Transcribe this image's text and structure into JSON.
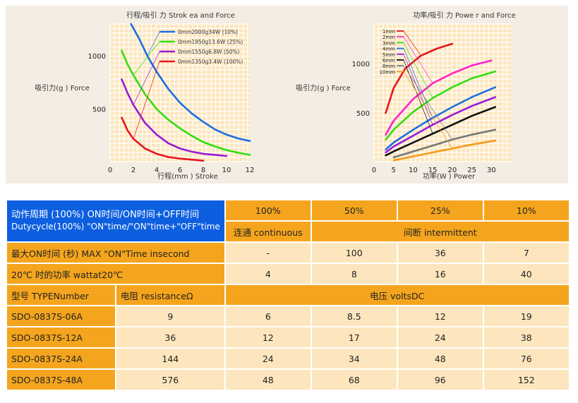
{
  "chart_data": [
    {
      "type": "line",
      "title": "行程/吸引 力 Strok ea and Force",
      "xlabel": "行程(mm ) Stroke",
      "ylabel": "吸引力(g ) Force",
      "xticks": [
        "0",
        "2",
        "4",
        "6",
        "8",
        "10",
        "12"
      ],
      "yticks": [
        "500",
        "1000"
      ],
      "xlim": [
        0,
        12
      ],
      "ylim": [
        0,
        1300
      ],
      "grid": true,
      "legend_position": "top-right",
      "series": [
        {
          "name": "0mm2000g34W (10%)",
          "color": "#1a6fe0",
          "x": [
            1.8,
            2.5,
            3.2,
            4,
            5,
            6,
            7,
            8,
            9,
            10,
            11,
            12
          ],
          "y": [
            1300,
            1160,
            1000,
            850,
            690,
            560,
            460,
            380,
            310,
            260,
            225,
            200
          ]
        },
        {
          "name": "0mm1950g13.6W (25%)",
          "color": "#33dd11",
          "x": [
            1,
            1.5,
            2,
            3,
            4,
            5,
            6,
            7,
            8,
            9,
            10,
            11,
            12
          ],
          "y": [
            1050,
            920,
            820,
            640,
            500,
            400,
            320,
            250,
            190,
            150,
            115,
            90,
            70
          ]
        },
        {
          "name": "0mm1550g6.8W (50%)",
          "color": "#9a1ad8",
          "x": [
            1,
            1.5,
            2,
            3,
            4,
            5,
            6,
            7,
            8,
            9,
            10
          ],
          "y": [
            780,
            650,
            540,
            370,
            260,
            180,
            130,
            100,
            80,
            70,
            60
          ]
        },
        {
          "name": "0mm1350g3.4W (100%)",
          "color": "#e8141e",
          "x": [
            1,
            1.5,
            2,
            3,
            4,
            5,
            6,
            7,
            8
          ],
          "y": [
            420,
            300,
            220,
            130,
            80,
            50,
            35,
            25,
            15
          ]
        }
      ]
    },
    {
      "type": "line",
      "title": "功率/吸引 力 Powe r and Force",
      "xlabel": "功率(W ) Power",
      "ylabel": "吸引力(g ) Force",
      "xticks": [
        "0",
        "5",
        "10",
        "15",
        "20",
        "25",
        "30"
      ],
      "yticks": [
        "500",
        "1000"
      ],
      "xlim": [
        0,
        35
      ],
      "ylim": [
        0,
        1400
      ],
      "grid": true,
      "legend_position": "top-left",
      "series": [
        {
          "name": "1mm",
          "color": "#e8141e",
          "x": [
            3,
            5,
            8,
            12,
            16,
            20
          ],
          "y": [
            500,
            750,
            950,
            1080,
            1150,
            1200
          ]
        },
        {
          "name": "2mm",
          "color": "#ff22cc",
          "x": [
            3,
            5,
            10,
            15,
            20,
            25,
            30
          ],
          "y": [
            280,
            420,
            640,
            800,
            900,
            980,
            1030
          ]
        },
        {
          "name": "3mm",
          "color": "#33dd11",
          "x": [
            3,
            5,
            10,
            15,
            20,
            25,
            31
          ],
          "y": [
            230,
            330,
            510,
            650,
            760,
            850,
            920
          ]
        },
        {
          "name": "4mm",
          "color": "#1a6fe0",
          "x": [
            3,
            5,
            10,
            15,
            20,
            25,
            31
          ],
          "y": [
            130,
            200,
            330,
            450,
            560,
            660,
            760
          ]
        },
        {
          "name": "5mm",
          "color": "#9a1ad8",
          "x": [
            3,
            5,
            10,
            15,
            20,
            25,
            31
          ],
          "y": [
            100,
            160,
            270,
            380,
            480,
            570,
            660
          ]
        },
        {
          "name": "6mm",
          "color": "#111111",
          "x": [
            3,
            5,
            10,
            15,
            20,
            25,
            31
          ],
          "y": [
            70,
            110,
            200,
            290,
            380,
            470,
            560
          ]
        },
        {
          "name": "8mm",
          "color": "#777777",
          "x": [
            5,
            10,
            15,
            20,
            25,
            31
          ],
          "y": [
            50,
            110,
            170,
            230,
            280,
            330
          ]
        },
        {
          "name": "10mm",
          "color": "#f59a1a",
          "x": [
            5,
            10,
            15,
            20,
            25,
            31
          ],
          "y": [
            20,
            60,
            100,
            140,
            180,
            220
          ]
        }
      ]
    }
  ],
  "table": {
    "header": {
      "line1": "动作周期 (100%) ON时间/ON时间+OFF时间",
      "line2": "Dutycycle(100%) \"ON\"time/\"ON\"time+\"OFF\"time",
      "duty": [
        "100%",
        "50%",
        "25%",
        "10%"
      ],
      "continuous": "连通 continuous",
      "intermittent": "间断 intermittent"
    },
    "max_on": {
      "label": "最大ON时间 (秒) MAX \"ON\"Time insecond",
      "values": [
        "-",
        "100",
        "36",
        "7"
      ]
    },
    "power": {
      "label": "20℃ 时的功率 wattat20℃",
      "values": [
        "4",
        "8",
        "16",
        "40"
      ]
    },
    "type_header": {
      "type": "型号 TYPENumber",
      "resistance": "电阻 resistanceΩ",
      "volts": "电压 voltsDC"
    },
    "rows": [
      {
        "type": "SDO-0837S-06A",
        "resistance": "9",
        "volts": [
          "6",
          "8.5",
          "12",
          "19"
        ]
      },
      {
        "type": "SDO-0837S-12A",
        "resistance": "36",
        "volts": [
          "12",
          "17",
          "24",
          "38"
        ]
      },
      {
        "type": "SDO-0837S-24A",
        "resistance": "144",
        "volts": [
          "24",
          "34",
          "48",
          "76"
        ]
      },
      {
        "type": "SDO-0837S-48A",
        "resistance": "576",
        "volts": [
          "48",
          "68",
          "96",
          "152"
        ]
      }
    ]
  }
}
